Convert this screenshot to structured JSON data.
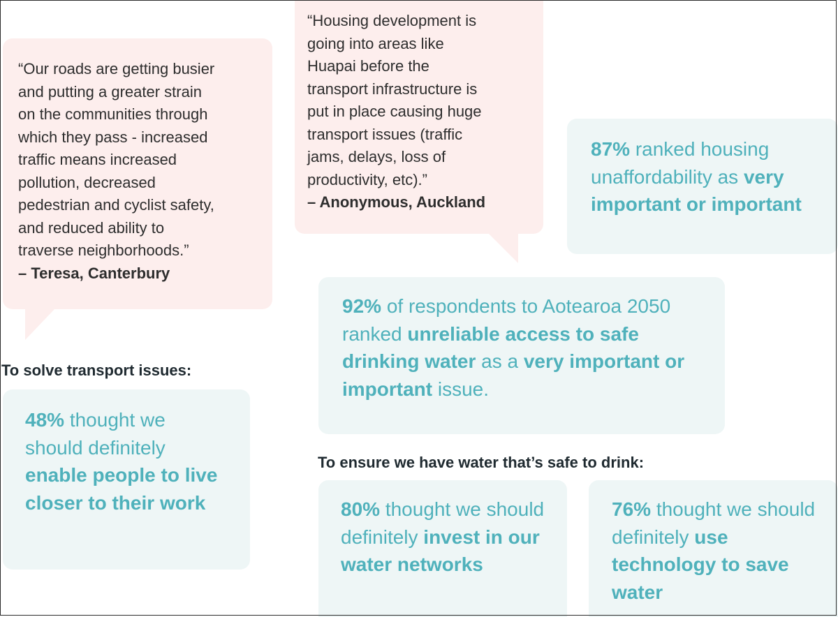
{
  "quotes": [
    {
      "text": "“Our roads are getting busier\n and putting a greater strain\n on the communities through\n which they pass - increased\n traffic means increased\n pollution, decreased\n pedestrian and cyclist safety,\n and reduced ability to\n traverse neighborhoods.”",
      "author": "– Teresa, Canterbury"
    },
    {
      "text": "“Housing development is\n going into areas like\n Huapai before the\n transport infrastructure is\n put in place causing huge\n transport issues (traffic\n jams, delays, loss of\n productivity, etc).”",
      "author": "– Anonymous, Auckland"
    }
  ],
  "stats": {
    "housing": {
      "pct": "87%",
      "t1": " ranked housing unaffordability as ",
      "b1": "very important or important"
    },
    "water_access": {
      "pct": "92%",
      "t1": " of respondents to Aotearoa 2050 ranked ",
      "b1": "unreliable access to safe drinking water",
      "t2": " as a ",
      "b2": "very important or important",
      "t3": " issue."
    },
    "transport": {
      "pct": "48%",
      "t1": " thought we should definitely ",
      "b1": "enable people to live closer to their work"
    },
    "invest": {
      "pct": "80%",
      "t1": " thought we should definitely ",
      "b1": "invest in our water networks"
    },
    "technology": {
      "pct": "76%",
      "t1": " thought we should definitely ",
      "b1": "use technology to save water"
    }
  },
  "headings": {
    "transport": "To solve transport issues:",
    "water": "To ensure we have water that’s safe to drink:"
  },
  "colors": {
    "quote_bg": "#fdeeed",
    "stat_bg": "#eef6f6",
    "teal": "#4fb1bb",
    "dark_text": "#1f2a30"
  }
}
